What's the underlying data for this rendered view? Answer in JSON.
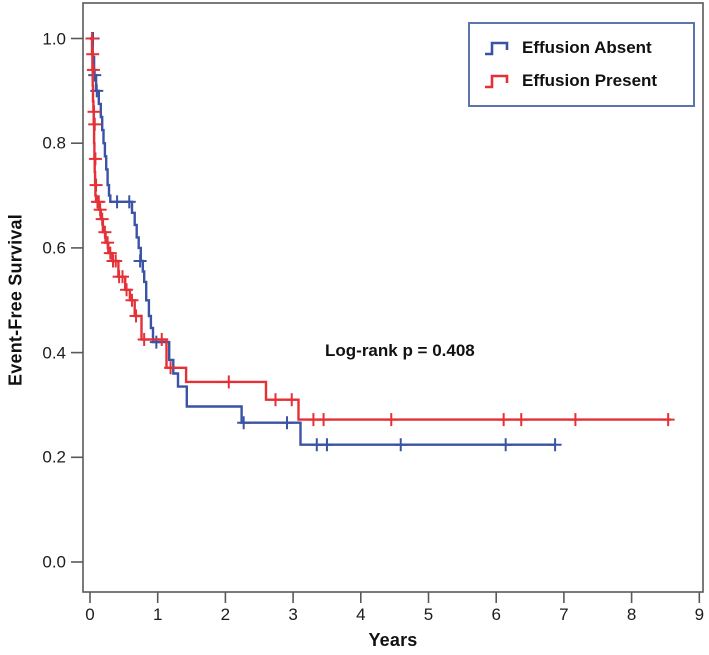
{
  "figure": {
    "background": "#ffffff",
    "frame_color": "#595959"
  },
  "annotation": {
    "text": "Log-rank p = 0.408"
  },
  "legend": {
    "items": [
      {
        "label": "Effusion Absent",
        "color": "#3a53a4",
        "glyph": "km-step-icon"
      },
      {
        "label": "Effusion Present",
        "color": "#e43137",
        "glyph": "km-step-icon"
      }
    ]
  },
  "chart_data": {
    "type": "line",
    "subtype": "kaplan-meier-step",
    "title": "",
    "xlabel": "Years",
    "ylabel": "Event-Free Survival",
    "xlim": [
      0,
      9
    ],
    "ylim": [
      0.0,
      1.0
    ],
    "grid": false,
    "legend_position": "top-right",
    "x_tick_labels": [
      "0",
      "1",
      "2",
      "3",
      "4",
      "5",
      "6",
      "7",
      "8",
      "9"
    ],
    "y_tick_labels": [
      "0.0",
      "0.2",
      "0.4",
      "0.6",
      "0.8",
      "1.0"
    ],
    "annotation": "Log-rank p = 0.408",
    "series": [
      {
        "name": "Effusion Absent",
        "color": "#3a53a4",
        "start": [
          0,
          1.0
        ],
        "end_x": 6.87,
        "drops": [
          [
            0.04,
            0.965
          ],
          [
            0.06,
            0.93
          ],
          [
            0.09,
            0.9
          ],
          [
            0.13,
            0.875
          ],
          [
            0.16,
            0.85
          ],
          [
            0.18,
            0.825
          ],
          [
            0.2,
            0.8
          ],
          [
            0.22,
            0.775
          ],
          [
            0.24,
            0.75
          ],
          [
            0.26,
            0.72
          ],
          [
            0.28,
            0.7
          ],
          [
            0.3,
            0.688
          ],
          [
            0.62,
            0.667
          ],
          [
            0.66,
            0.644
          ],
          [
            0.69,
            0.62
          ],
          [
            0.72,
            0.6
          ],
          [
            0.75,
            0.575
          ],
          [
            0.78,
            0.555
          ],
          [
            0.8,
            0.535
          ],
          [
            0.83,
            0.5
          ],
          [
            0.87,
            0.47
          ],
          [
            0.9,
            0.447
          ],
          [
            0.93,
            0.42
          ],
          [
            1.17,
            0.386
          ],
          [
            1.23,
            0.36
          ],
          [
            1.3,
            0.335
          ],
          [
            1.43,
            0.297
          ],
          [
            2.24,
            0.266
          ],
          [
            3.11,
            0.224
          ]
        ],
        "censors": [
          [
            0.045,
            1.0
          ],
          [
            0.07,
            0.93
          ],
          [
            0.1,
            0.9
          ],
          [
            0.4,
            0.688
          ],
          [
            0.58,
            0.688
          ],
          [
            0.74,
            0.575
          ],
          [
            0.98,
            0.42
          ],
          [
            2.27,
            0.266
          ],
          [
            2.91,
            0.266
          ],
          [
            3.35,
            0.224
          ],
          [
            3.5,
            0.224
          ],
          [
            4.59,
            0.224
          ],
          [
            6.14,
            0.224
          ],
          [
            6.87,
            0.224
          ]
        ]
      },
      {
        "name": "Effusion Present",
        "color": "#e43137",
        "start": [
          0,
          1.0
        ],
        "end_x": 8.58,
        "drops": [
          [
            0.03,
            0.97
          ],
          [
            0.035,
            0.94
          ],
          [
            0.04,
            0.91
          ],
          [
            0.045,
            0.88
          ],
          [
            0.05,
            0.86
          ],
          [
            0.055,
            0.836
          ],
          [
            0.06,
            0.8
          ],
          [
            0.065,
            0.77
          ],
          [
            0.07,
            0.745
          ],
          [
            0.075,
            0.72
          ],
          [
            0.08,
            0.7
          ],
          [
            0.09,
            0.688
          ],
          [
            0.13,
            0.673
          ],
          [
            0.16,
            0.655
          ],
          [
            0.19,
            0.63
          ],
          [
            0.23,
            0.61
          ],
          [
            0.27,
            0.59
          ],
          [
            0.33,
            0.575
          ],
          [
            0.42,
            0.545
          ],
          [
            0.52,
            0.52
          ],
          [
            0.59,
            0.5
          ],
          [
            0.66,
            0.47
          ],
          [
            0.76,
            0.425
          ],
          [
            1.13,
            0.371
          ],
          [
            1.42,
            0.344
          ],
          [
            2.6,
            0.31
          ],
          [
            3.08,
            0.272
          ]
        ],
        "censors": [
          [
            0.03,
            1.0
          ],
          [
            0.04,
            0.97
          ],
          [
            0.05,
            0.94
          ],
          [
            0.06,
            0.86
          ],
          [
            0.07,
            0.836
          ],
          [
            0.08,
            0.77
          ],
          [
            0.09,
            0.72
          ],
          [
            0.11,
            0.688
          ],
          [
            0.13,
            0.688
          ],
          [
            0.15,
            0.673
          ],
          [
            0.18,
            0.655
          ],
          [
            0.22,
            0.63
          ],
          [
            0.26,
            0.61
          ],
          [
            0.3,
            0.59
          ],
          [
            0.34,
            0.575
          ],
          [
            0.38,
            0.575
          ],
          [
            0.43,
            0.545
          ],
          [
            0.48,
            0.545
          ],
          [
            0.54,
            0.52
          ],
          [
            0.62,
            0.5
          ],
          [
            0.68,
            0.47
          ],
          [
            0.8,
            0.425
          ],
          [
            1.06,
            0.425
          ],
          [
            1.19,
            0.371
          ],
          [
            2.05,
            0.344
          ],
          [
            2.74,
            0.31
          ],
          [
            2.98,
            0.31
          ],
          [
            3.3,
            0.272
          ],
          [
            3.45,
            0.272
          ],
          [
            4.45,
            0.272
          ],
          [
            6.11,
            0.272
          ],
          [
            6.37,
            0.272
          ],
          [
            7.17,
            0.272
          ],
          [
            8.54,
            0.272
          ]
        ]
      }
    ]
  }
}
